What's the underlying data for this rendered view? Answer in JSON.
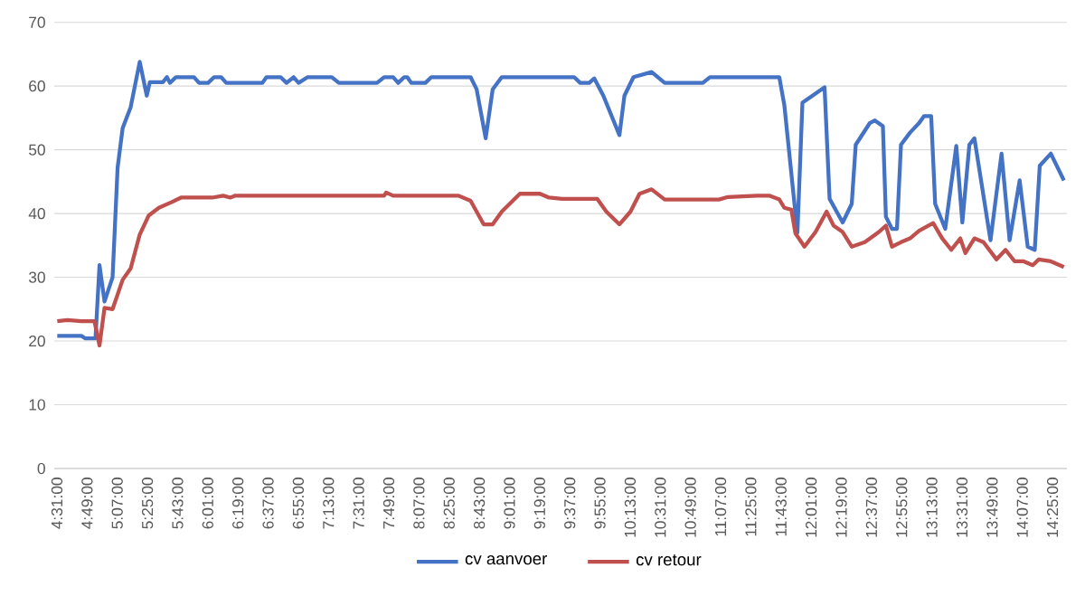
{
  "chart_data": {
    "type": "line",
    "xlim": [
      4.49,
      14.56
    ],
    "xticks": [
      {
        "value": 4.5167,
        "label": "4:31:00"
      },
      {
        "value": 4.8167,
        "label": "4:49:00"
      },
      {
        "value": 5.1167,
        "label": "5:07:00"
      },
      {
        "value": 5.4167,
        "label": "5:25:00"
      },
      {
        "value": 5.7167,
        "label": "5:43:00"
      },
      {
        "value": 6.0167,
        "label": "6:01:00"
      },
      {
        "value": 6.3167,
        "label": "6:19:00"
      },
      {
        "value": 6.6167,
        "label": "6:37:00"
      },
      {
        "value": 6.9167,
        "label": "6:55:00"
      },
      {
        "value": 7.2167,
        "label": "7:13:00"
      },
      {
        "value": 7.5167,
        "label": "7:31:00"
      },
      {
        "value": 7.8167,
        "label": "7:49:00"
      },
      {
        "value": 8.1167,
        "label": "8:07:00"
      },
      {
        "value": 8.4167,
        "label": "8:25:00"
      },
      {
        "value": 8.7167,
        "label": "8:43:00"
      },
      {
        "value": 9.0167,
        "label": "9:01:00"
      },
      {
        "value": 9.3167,
        "label": "9:19:00"
      },
      {
        "value": 9.6167,
        "label": "9:37:00"
      },
      {
        "value": 9.9167,
        "label": "9:55:00"
      },
      {
        "value": 10.2167,
        "label": "10:13:00"
      },
      {
        "value": 10.5167,
        "label": "10:31:00"
      },
      {
        "value": 10.8167,
        "label": "10:49:00"
      },
      {
        "value": 11.1167,
        "label": "11:07:00"
      },
      {
        "value": 11.4167,
        "label": "11:25:00"
      },
      {
        "value": 11.7167,
        "label": "11:43:00"
      },
      {
        "value": 12.0167,
        "label": "12:01:00"
      },
      {
        "value": 12.3167,
        "label": "12:19:00"
      },
      {
        "value": 12.6167,
        "label": "12:37:00"
      },
      {
        "value": 12.9167,
        "label": "12:55:00"
      },
      {
        "value": 13.2167,
        "label": "13:13:00"
      },
      {
        "value": 13.5167,
        "label": "13:31:00"
      },
      {
        "value": 13.8167,
        "label": "13:49:00"
      },
      {
        "value": 14.1167,
        "label": "14:07:00"
      },
      {
        "value": 14.4167,
        "label": "14:25:00"
      }
    ],
    "ylim": [
      0,
      70
    ],
    "yticks": [
      0,
      10,
      20,
      30,
      40,
      50,
      60,
      70
    ],
    "grid": "y",
    "legend": "bottom",
    "series": [
      {
        "name": "cv aanvoer",
        "color": "#4472c4",
        "x": [
          4.52,
          4.76,
          4.8,
          4.9,
          4.94,
          4.99,
          5.07,
          5.12,
          5.17,
          5.25,
          5.34,
          5.41,
          5.44,
          5.57,
          5.61,
          5.64,
          5.7,
          5.88,
          5.93,
          6.02,
          6.08,
          6.15,
          6.2,
          6.56,
          6.6,
          6.74,
          6.8,
          6.87,
          6.92,
          7.01,
          7.25,
          7.32,
          7.7,
          7.77,
          7.86,
          7.91,
          7.97,
          8.0,
          8.04,
          8.18,
          8.24,
          8.63,
          8.69,
          8.78,
          8.85,
          8.94,
          9.66,
          9.72,
          9.81,
          9.86,
          9.95,
          10.11,
          10.16,
          10.25,
          10.43,
          10.56,
          10.94,
          11.01,
          11.7,
          11.75,
          11.88,
          11.93,
          12.15,
          12.2,
          12.33,
          12.42,
          12.46,
          12.6,
          12.65,
          12.73,
          12.76,
          12.82,
          12.87,
          12.91,
          13.0,
          13.09,
          13.14,
          13.21,
          13.25,
          13.35,
          13.46,
          13.52,
          13.59,
          13.64,
          13.8,
          13.91,
          13.99,
          14.09,
          14.17,
          14.24,
          14.29,
          14.4,
          14.53
        ],
        "values": [
          20.8,
          20.8,
          20.4,
          20.4,
          31.9,
          26.2,
          30,
          47.2,
          53.4,
          56.7,
          63.8,
          58.5,
          60.6,
          60.6,
          61.4,
          60.5,
          61.4,
          61.4,
          60.5,
          60.5,
          61.4,
          61.4,
          60.5,
          60.5,
          61.4,
          61.4,
          60.5,
          61.4,
          60.5,
          61.4,
          61.4,
          60.5,
          60.5,
          61.4,
          61.4,
          60.5,
          61.4,
          61.4,
          60.5,
          60.5,
          61.4,
          61.4,
          59.5,
          51.8,
          59.5,
          61.4,
          61.4,
          60.5,
          60.5,
          61.2,
          58.5,
          52.3,
          58.5,
          61.4,
          62.2,
          60.5,
          60.5,
          61.4,
          61.4,
          57,
          37,
          57.4,
          59.8,
          42.3,
          38.6,
          41.5,
          50.8,
          54.2,
          54.6,
          53.7,
          39.5,
          37.6,
          37.6,
          50.8,
          52.7,
          54.2,
          55.3,
          55.3,
          41.5,
          37.6,
          50.6,
          38.6,
          50.8,
          51.8,
          35.8,
          49.4,
          35.8,
          45.2,
          34.8,
          34.3,
          47.5,
          49.4,
          45.2
        ]
      },
      {
        "name": "cv retour",
        "color": "#c0504d",
        "x": [
          4.52,
          4.62,
          4.76,
          4.89,
          4.94,
          4.99,
          5.07,
          5.12,
          5.17,
          5.25,
          5.34,
          5.43,
          5.53,
          5.66,
          5.75,
          6.06,
          6.17,
          6.24,
          6.29,
          7.77,
          7.79,
          7.86,
          8.51,
          8.63,
          8.76,
          8.85,
          8.94,
          9.12,
          9.32,
          9.41,
          9.54,
          9.89,
          9.98,
          10.11,
          10.22,
          10.31,
          10.43,
          10.56,
          11.1,
          11.19,
          11.48,
          11.6,
          11.7,
          11.75,
          11.82,
          11.86,
          11.95,
          12.06,
          12.17,
          12.24,
          12.33,
          12.42,
          12.55,
          12.69,
          12.76,
          12.82,
          12.91,
          13.0,
          13.09,
          13.23,
          13.32,
          13.41,
          13.5,
          13.55,
          13.64,
          13.73,
          13.86,
          13.95,
          14.04,
          14.13,
          14.22,
          14.28,
          14.4,
          14.53
        ],
        "values": [
          23.1,
          23.3,
          23.1,
          23.1,
          19.3,
          25.2,
          25,
          27.3,
          29.6,
          31.4,
          36.7,
          39.7,
          40.9,
          41.8,
          42.5,
          42.5,
          42.8,
          42.5,
          42.8,
          42.8,
          43.3,
          42.8,
          42.8,
          42.0,
          38.3,
          38.3,
          40.3,
          43.1,
          43.1,
          42.5,
          42.3,
          42.3,
          40.3,
          38.3,
          40.3,
          43.1,
          43.8,
          42.2,
          42.2,
          42.6,
          42.8,
          42.8,
          42.2,
          40.9,
          40.6,
          36.9,
          34.8,
          37.1,
          40.3,
          38.1,
          37.1,
          34.8,
          35.5,
          37.1,
          38.1,
          34.8,
          35.5,
          36.1,
          37.3,
          38.5,
          36.1,
          34.3,
          36.1,
          33.8,
          36.1,
          35.5,
          32.8,
          34.3,
          32.5,
          32.5,
          31.9,
          32.8,
          32.5,
          31.6
        ]
      }
    ]
  }
}
